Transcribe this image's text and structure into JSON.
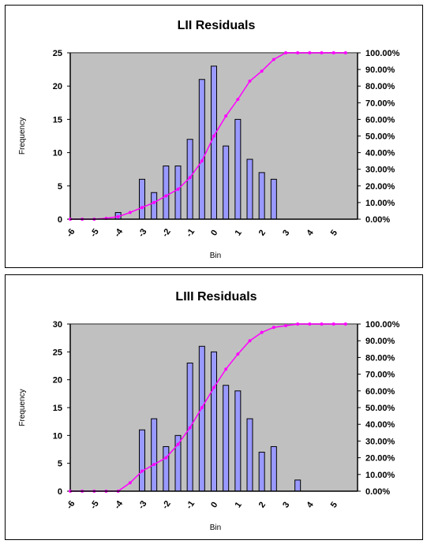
{
  "chart_data": [
    {
      "type": "bar",
      "title": "LII Residuals",
      "xlabel": "Bin",
      "ylabel": "Frequency",
      "categories": [
        "-6",
        "-5",
        "-4",
        "-3",
        "-2",
        "-1",
        "0",
        "1",
        "2",
        "3",
        "4",
        "5"
      ],
      "ylim": [
        0,
        25
      ],
      "yticks": [
        0,
        5,
        10,
        15,
        20,
        25
      ],
      "y2lim": [
        0,
        100
      ],
      "y2ticks": [
        "0.00%",
        "10.00%",
        "20.00%",
        "30.00%",
        "40.00%",
        "50.00%",
        "60.00%",
        "70.00%",
        "80.00%",
        "90.00%",
        "100.00%"
      ],
      "bars": [
        {
          "x": -4.0,
          "value": 1
        },
        {
          "x": -3.0,
          "value": 6
        },
        {
          "x": -2.5,
          "value": 4
        },
        {
          "x": -2.0,
          "value": 8
        },
        {
          "x": -1.5,
          "value": 8
        },
        {
          "x": -1.0,
          "value": 12
        },
        {
          "x": -0.5,
          "value": 21
        },
        {
          "x": 0.0,
          "value": 23
        },
        {
          "x": 0.5,
          "value": 11
        },
        {
          "x": 1.0,
          "value": 15
        },
        {
          "x": 1.5,
          "value": 9
        },
        {
          "x": 2.0,
          "value": 7
        },
        {
          "x": 2.5,
          "value": 6
        }
      ],
      "cumulative": [
        {
          "x": -6.0,
          "value": 0
        },
        {
          "x": -5.5,
          "value": 0
        },
        {
          "x": -5.0,
          "value": 0
        },
        {
          "x": -4.5,
          "value": 0.5
        },
        {
          "x": -4.0,
          "value": 1.5
        },
        {
          "x": -3.5,
          "value": 4
        },
        {
          "x": -3.0,
          "value": 7
        },
        {
          "x": -2.5,
          "value": 10
        },
        {
          "x": -2.0,
          "value": 14
        },
        {
          "x": -1.5,
          "value": 18
        },
        {
          "x": -1.0,
          "value": 25
        },
        {
          "x": -0.5,
          "value": 35
        },
        {
          "x": 0.0,
          "value": 50
        },
        {
          "x": 0.5,
          "value": 62
        },
        {
          "x": 1.0,
          "value": 72
        },
        {
          "x": 1.5,
          "value": 83
        },
        {
          "x": 2.0,
          "value": 89
        },
        {
          "x": 2.5,
          "value": 96
        },
        {
          "x": 3.0,
          "value": 100
        },
        {
          "x": 3.5,
          "value": 100
        },
        {
          "x": 4.0,
          "value": 100
        },
        {
          "x": 4.5,
          "value": 100
        },
        {
          "x": 5.0,
          "value": 100
        },
        {
          "x": 5.5,
          "value": 100
        }
      ],
      "bar_color": "#9999ff",
      "line_color": "#ff00ff",
      "plot_background": "#c0c0c0"
    },
    {
      "type": "bar",
      "title": "LIII Residuals",
      "xlabel": "Bin",
      "ylabel": "Frequency",
      "categories": [
        "-6",
        "-5",
        "-4",
        "-3",
        "-2",
        "-1",
        "0",
        "1",
        "2",
        "3",
        "4",
        "5"
      ],
      "ylim": [
        0,
        30
      ],
      "yticks": [
        0,
        5,
        10,
        15,
        20,
        25,
        30
      ],
      "y2lim": [
        0,
        100
      ],
      "y2ticks": [
        "0.00%",
        "10.00%",
        "20.00%",
        "30.00%",
        "40.00%",
        "50.00%",
        "60.00%",
        "70.00%",
        "80.00%",
        "90.00%",
        "100.00%"
      ],
      "bars": [
        {
          "x": -3.0,
          "value": 11
        },
        {
          "x": -2.5,
          "value": 13
        },
        {
          "x": -2.0,
          "value": 8
        },
        {
          "x": -1.5,
          "value": 10
        },
        {
          "x": -1.0,
          "value": 23
        },
        {
          "x": -0.5,
          "value": 26
        },
        {
          "x": 0.0,
          "value": 25
        },
        {
          "x": 0.5,
          "value": 19
        },
        {
          "x": 1.0,
          "value": 18
        },
        {
          "x": 1.5,
          "value": 13
        },
        {
          "x": 2.0,
          "value": 7
        },
        {
          "x": 2.5,
          "value": 8
        },
        {
          "x": 3.5,
          "value": 2
        }
      ],
      "cumulative": [
        {
          "x": -6.0,
          "value": 0
        },
        {
          "x": -5.5,
          "value": 0
        },
        {
          "x": -5.0,
          "value": 0
        },
        {
          "x": -4.5,
          "value": 0
        },
        {
          "x": -4.0,
          "value": 0
        },
        {
          "x": -3.5,
          "value": 5
        },
        {
          "x": -3.0,
          "value": 12
        },
        {
          "x": -2.5,
          "value": 16
        },
        {
          "x": -2.0,
          "value": 20
        },
        {
          "x": -1.5,
          "value": 28
        },
        {
          "x": -1.0,
          "value": 38
        },
        {
          "x": -0.5,
          "value": 50
        },
        {
          "x": 0.0,
          "value": 62
        },
        {
          "x": 0.5,
          "value": 73
        },
        {
          "x": 1.0,
          "value": 82
        },
        {
          "x": 1.5,
          "value": 90
        },
        {
          "x": 2.0,
          "value": 95
        },
        {
          "x": 2.5,
          "value": 98
        },
        {
          "x": 3.0,
          "value": 99
        },
        {
          "x": 3.5,
          "value": 100
        },
        {
          "x": 4.0,
          "value": 100
        },
        {
          "x": 4.5,
          "value": 100
        },
        {
          "x": 5.0,
          "value": 100
        },
        {
          "x": 5.5,
          "value": 100
        }
      ],
      "bar_color": "#9999ff",
      "line_color": "#ff00ff",
      "plot_background": "#c0c0c0"
    }
  ]
}
